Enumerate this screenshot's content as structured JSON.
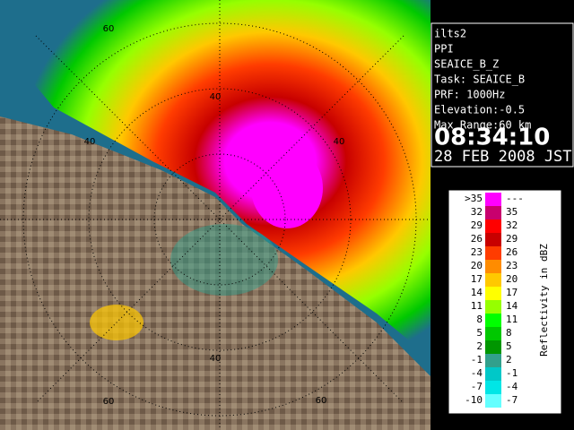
{
  "info": {
    "lines": [
      "ilts2",
      "PPI",
      "SEAICE_B_Z",
      "Task: SEAICE_B",
      "PRF: 1000Hz",
      "Elevation:-0.5",
      "Max Range:60 km"
    ],
    "time": "08:34:10",
    "date": "28 FEB 2008 JST"
  },
  "legend": {
    "title": "Reflectivity in dBZ",
    "rows": [
      {
        "low": ">35",
        "high": "---",
        "color": "#ff00ff"
      },
      {
        "low": "32",
        "high": "35",
        "color": "#c8006e"
      },
      {
        "low": "29",
        "high": "32",
        "color": "#ff0000"
      },
      {
        "low": "26",
        "high": "29",
        "color": "#c80000"
      },
      {
        "low": "23",
        "high": "26",
        "color": "#ff3c00"
      },
      {
        "low": "20",
        "high": "23",
        "color": "#ff8c00"
      },
      {
        "low": "17",
        "high": "20",
        "color": "#ffc800"
      },
      {
        "low": "14",
        "high": "17",
        "color": "#ffff00"
      },
      {
        "low": "11",
        "high": "14",
        "color": "#96ff00"
      },
      {
        "low": "8",
        "high": "11",
        "color": "#00ff00"
      },
      {
        "low": "5",
        "high": "8",
        "color": "#00c800"
      },
      {
        "low": "2",
        "high": "5",
        "color": "#009600"
      },
      {
        "low": "-1",
        "high": "2",
        "color": "#32a08c"
      },
      {
        "low": "-4",
        "high": "-1",
        "color": "#00c8c8"
      },
      {
        "low": "-7",
        "high": "-4",
        "color": "#00e6e6"
      },
      {
        "low": "-10",
        "high": "-7",
        "color": "#64ffff"
      }
    ]
  },
  "range_labels": [
    "60",
    "40",
    "40",
    "40",
    "40",
    "60",
    "60"
  ]
}
